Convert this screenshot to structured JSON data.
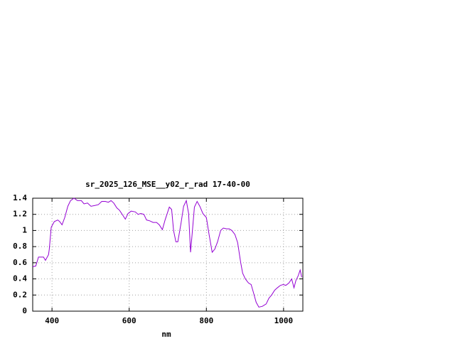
{
  "chart_data": {
    "type": "line",
    "title": "sr_2025_126_MSE__y02_r_rad 17-40-00",
    "x_label": "nm",
    "x": [
      350,
      358,
      365,
      378,
      383,
      391,
      393,
      398,
      406,
      415,
      420,
      426,
      433,
      441,
      448,
      457,
      466,
      476,
      483,
      492,
      501,
      511,
      520,
      529,
      538,
      546,
      553,
      560,
      568,
      575,
      582,
      590,
      597,
      605,
      616,
      623,
      630,
      638,
      645,
      653,
      662,
      671,
      678,
      686,
      693,
      704,
      710,
      715,
      721,
      726,
      734,
      741,
      748,
      754,
      759,
      763,
      769,
      776,
      783,
      791,
      800,
      807,
      815,
      822,
      829,
      837,
      844,
      852,
      859,
      866,
      874,
      881,
      889,
      894,
      901,
      909,
      916,
      922,
      929,
      936,
      945,
      955,
      962,
      969,
      977,
      984,
      992,
      999,
      1006,
      1014,
      1021,
      1027,
      1032,
      1038,
      1043,
      1047
    ],
    "series": [
      {
        "name": "sr_2025_126_MSE__y02_r_rad 17-40-00",
        "color": "#9400d3",
        "values": [
          0.55,
          0.56,
          0.67,
          0.67,
          0.63,
          0.7,
          0.77,
          1.04,
          1.11,
          1.13,
          1.11,
          1.07,
          1.16,
          1.3,
          1.37,
          1.4,
          1.37,
          1.37,
          1.33,
          1.34,
          1.3,
          1.31,
          1.32,
          1.36,
          1.36,
          1.35,
          1.37,
          1.34,
          1.28,
          1.25,
          1.2,
          1.14,
          1.21,
          1.24,
          1.23,
          1.2,
          1.21,
          1.2,
          1.13,
          1.12,
          1.1,
          1.1,
          1.07,
          1.01,
          1.13,
          1.29,
          1.26,
          1.0,
          0.86,
          0.86,
          1.08,
          1.3,
          1.37,
          1.21,
          0.73,
          0.95,
          1.29,
          1.36,
          1.3,
          1.21,
          1.16,
          0.95,
          0.73,
          0.77,
          0.86,
          1.0,
          1.03,
          1.02,
          1.02,
          1.0,
          0.95,
          0.85,
          0.6,
          0.47,
          0.4,
          0.35,
          0.33,
          0.23,
          0.11,
          0.05,
          0.06,
          0.09,
          0.16,
          0.2,
          0.26,
          0.29,
          0.32,
          0.33,
          0.32,
          0.35,
          0.4,
          0.29,
          0.38,
          0.44,
          0.51,
          0.42
        ]
      }
    ],
    "xlim": [
      350,
      1050
    ],
    "ylim": [
      0,
      1.4
    ],
    "xticks": [
      400,
      600,
      800,
      1000
    ],
    "yticks": [
      0,
      0.2,
      0.4,
      0.6,
      0.8,
      1,
      1.2,
      1.4
    ],
    "grid": true
  }
}
